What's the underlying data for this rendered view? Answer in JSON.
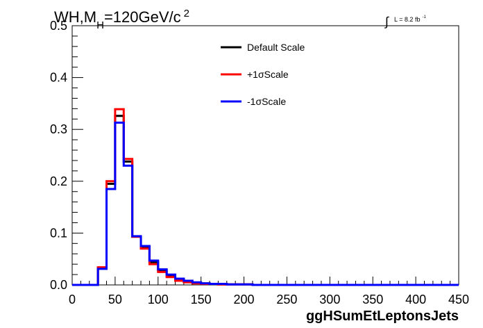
{
  "chart_data": {
    "type": "line",
    "title_main": "WH,M",
    "title_sub": "H",
    "title_rest": "=120GeV/c",
    "title_sup": "2",
    "lumi_integral": "∫",
    "lumi_text": "L = 8.2 fb",
    "lumi_sup": "-1",
    "xlabel": "ggHSumEtLeptonsJets",
    "ylabel": "",
    "xlim": [
      0,
      450
    ],
    "ylim": [
      0,
      0.5
    ],
    "x_tick_labels": [
      "0",
      "50",
      "100",
      "150",
      "200",
      "250",
      "300",
      "350",
      "400",
      "450"
    ],
    "y_tick_labels": [
      "0.0",
      "0.1",
      "0.2",
      "0.3",
      "0.4",
      "0.5"
    ],
    "bin_edges": [
      0,
      10,
      20,
      30,
      40,
      50,
      60,
      70,
      80,
      90,
      100,
      110,
      120,
      130,
      140,
      150,
      160,
      170,
      180,
      190,
      200,
      210,
      220,
      230,
      240,
      250,
      260,
      270,
      280,
      290,
      300,
      310,
      320,
      330,
      340,
      350,
      360,
      370,
      380,
      390,
      400,
      410,
      420,
      430,
      440,
      450
    ],
    "series": [
      {
        "name": "Default Scale",
        "color": "#000000",
        "values": [
          0,
          0,
          0,
          0.033,
          0.195,
          0.326,
          0.238,
          0.093,
          0.073,
          0.044,
          0.028,
          0.018,
          0.01,
          0.006,
          0.004,
          0.003,
          0.002,
          0.001,
          0.001,
          0.001,
          0.001,
          0,
          0,
          0,
          0,
          0,
          0,
          0,
          0,
          0,
          0,
          0,
          0,
          0,
          0,
          0,
          0,
          0,
          0,
          0,
          0,
          0,
          0,
          0,
          0
        ]
      },
      {
        "name": "+1σScale",
        "color": "#ff0000",
        "values": [
          0,
          0,
          0,
          0.034,
          0.2,
          0.339,
          0.243,
          0.093,
          0.07,
          0.04,
          0.025,
          0.015,
          0.008,
          0.005,
          0.003,
          0.002,
          0.002,
          0.001,
          0.001,
          0.001,
          0.001,
          0,
          0,
          0,
          0,
          0,
          0,
          0,
          0,
          0,
          0,
          0,
          0,
          0,
          0,
          0,
          0,
          0,
          0,
          0,
          0,
          0,
          0,
          0,
          0
        ]
      },
      {
        "name": "-1σScale",
        "color": "#0000ff",
        "values": [
          0,
          0,
          0,
          0.031,
          0.185,
          0.313,
          0.23,
          0.094,
          0.075,
          0.047,
          0.03,
          0.02,
          0.012,
          0.008,
          0.005,
          0.003,
          0.002,
          0.002,
          0.001,
          0.001,
          0.001,
          0,
          0,
          0,
          0,
          0,
          0,
          0,
          0,
          0,
          0,
          0,
          0,
          0,
          0,
          0,
          0,
          0,
          0,
          0,
          0,
          0,
          0,
          0,
          0
        ]
      }
    ],
    "legend_position": "top-right",
    "grid": false
  }
}
